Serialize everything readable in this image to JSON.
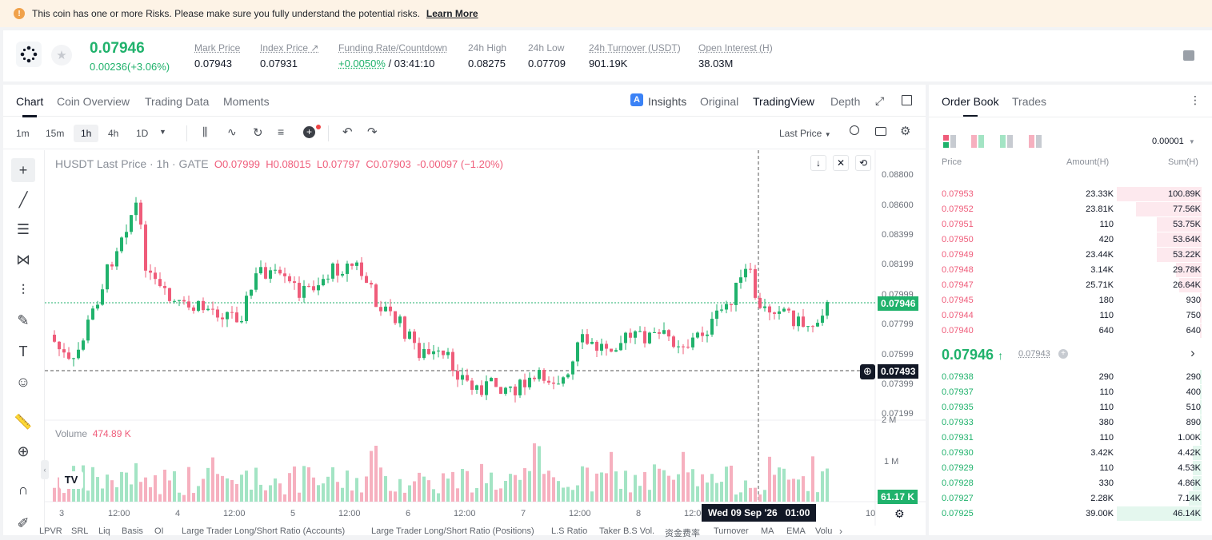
{
  "banner": {
    "text": "This coin has one or more Risks. Please make sure you fully understand the potential risks.",
    "link": "Learn More"
  },
  "ticker": {
    "last_price": "0.07946",
    "change": "0.00236(+3.06%)",
    "stats": [
      {
        "label": "Mark Price",
        "value": "0.07943"
      },
      {
        "label": "Index Price ↗",
        "value": "0.07931"
      },
      {
        "label": "Funding Rate/Countdown",
        "value_green": "+0.0050%",
        "value": " / 03:41:10"
      },
      {
        "label": "24h High",
        "value": "0.08275"
      },
      {
        "label": "24h Low",
        "value": "0.07709"
      },
      {
        "label": "24h Turnover (USDT)",
        "value": "901.19K"
      },
      {
        "label": "Open Interest (H)",
        "value": "38.03M"
      }
    ]
  },
  "chart_tabs": [
    "Chart",
    "Coin Overview",
    "Trading Data",
    "Moments"
  ],
  "view_tabs": [
    "Insights",
    "Original",
    "TradingView",
    "Depth"
  ],
  "timeframes": [
    "1m",
    "15m",
    "1h",
    "4h",
    "1D"
  ],
  "selected_timeframe": "1h",
  "price_type": "Last Price",
  "legend": {
    "symbol": "HUSDT Last Price · 1h · GATE",
    "o": "O0.07999",
    "h": "H0.08015",
    "l": "L0.07797",
    "c": "C0.07903",
    "chg": "-0.00097 (−1.20%)"
  },
  "y_axis": [
    "0.08800",
    "0.08600",
    "0.08399",
    "0.08199",
    "0.07999",
    "0.07799",
    "0.07599",
    "0.07399",
    "0.07199"
  ],
  "current_price_tag": "0.07946",
  "crosshair_price_tag": "0.07493",
  "volume_label": "Volume",
  "volume_value": "474.89 K",
  "volume_axis": [
    "2 M",
    "1 M"
  ],
  "volume_tag": "61.17 K",
  "x_axis": [
    "3",
    "12:00",
    "4",
    "12:00",
    "5",
    "12:00",
    "6",
    "12:00",
    "7",
    "12:00",
    "8",
    "12:00",
    "10"
  ],
  "crosshair_date": "Wed 09 Sep '26   01:00",
  "bottom_indicators": [
    "LPVR",
    "SRL",
    "Liq",
    "Basis",
    "OI",
    "Large Trader Long/Short Ratio (Accounts)",
    "Large Trader Long/Short Ratio (Positions)",
    "L.S Ratio",
    "Taker B.S Vol.",
    "资金费率",
    "Turnover",
    "MA",
    "EMA",
    "Volu"
  ],
  "orderbook": {
    "tabs": [
      "Order Book",
      "Trades"
    ],
    "precision": "0.00001",
    "headers": [
      "Price",
      "Amount(H)",
      "Sum(H)"
    ],
    "asks": [
      {
        "p": "0.07953",
        "a": "23.33K",
        "s": "100.89K",
        "depth": 1.0
      },
      {
        "p": "0.07952",
        "a": "23.81K",
        "s": "77.56K",
        "depth": 0.77
      },
      {
        "p": "0.07951",
        "a": "110",
        "s": "53.75K",
        "depth": 0.53
      },
      {
        "p": "0.07950",
        "a": "420",
        "s": "53.64K",
        "depth": 0.53
      },
      {
        "p": "0.07949",
        "a": "23.44K",
        "s": "53.22K",
        "depth": 0.53
      },
      {
        "p": "0.07948",
        "a": "3.14K",
        "s": "29.78K",
        "depth": 0.3
      },
      {
        "p": "0.07947",
        "a": "25.71K",
        "s": "26.64K",
        "depth": 0.26
      },
      {
        "p": "0.07945",
        "a": "180",
        "s": "930",
        "depth": 0.01
      },
      {
        "p": "0.07944",
        "a": "110",
        "s": "750",
        "depth": 0.01
      },
      {
        "p": "0.07940",
        "a": "640",
        "s": "640",
        "depth": 0.01
      }
    ],
    "mid_price": "0.07946",
    "mark_price": "0.07943",
    "bids": [
      {
        "p": "0.07938",
        "a": "290",
        "s": "290",
        "depth": 0.01
      },
      {
        "p": "0.07937",
        "a": "110",
        "s": "400",
        "depth": 0.01
      },
      {
        "p": "0.07935",
        "a": "110",
        "s": "510",
        "depth": 0.01
      },
      {
        "p": "0.07933",
        "a": "380",
        "s": "890",
        "depth": 0.02
      },
      {
        "p": "0.07931",
        "a": "110",
        "s": "1.00K",
        "depth": 0.02
      },
      {
        "p": "0.07930",
        "a": "3.42K",
        "s": "4.42K",
        "depth": 0.1
      },
      {
        "p": "0.07929",
        "a": "110",
        "s": "4.53K",
        "depth": 0.1
      },
      {
        "p": "0.07928",
        "a": "330",
        "s": "4.86K",
        "depth": 0.1
      },
      {
        "p": "0.07927",
        "a": "2.28K",
        "s": "7.14K",
        "depth": 0.15
      },
      {
        "p": "0.07925",
        "a": "39.00K",
        "s": "46.14K",
        "depth": 1.0
      }
    ]
  },
  "colors": {
    "up": "#20b26c",
    "down": "#ef5c7a",
    "up_light": "#a3e4c4",
    "down_light": "#f6b0bf"
  }
}
